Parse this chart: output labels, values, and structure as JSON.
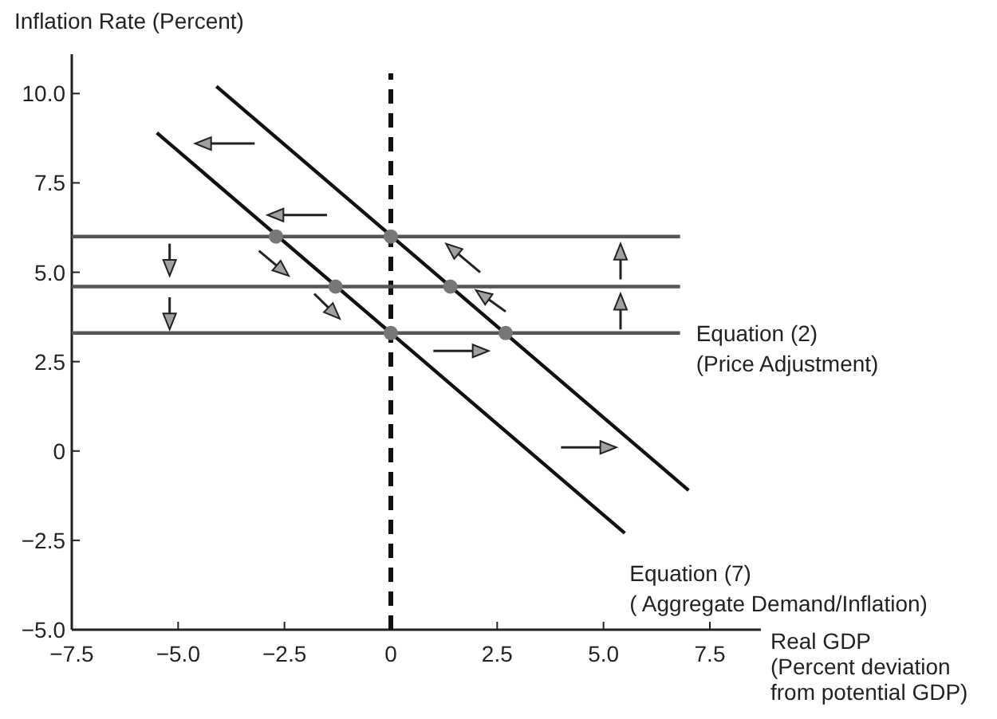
{
  "chart_data": {
    "type": "line",
    "xlabel": "Real GDP\n(Percent deviation\nfrom potential GDP)",
    "ylabel": "Inflation Rate (Percent)",
    "xlim": [
      -7.5,
      8.7
    ],
    "ylim": [
      -5,
      11.1
    ],
    "xticks": [
      {
        "value": -7.5,
        "label": "−7.5"
      },
      {
        "value": -5,
        "label": "−5.0"
      },
      {
        "value": -2.5,
        "label": "−2.5"
      },
      {
        "value": 0,
        "label": "0"
      },
      {
        "value": 2.5,
        "label": "2.5"
      },
      {
        "value": 5,
        "label": "5.0"
      },
      {
        "value": 7.5,
        "label": "7.5"
      }
    ],
    "yticks": [
      {
        "value": -5,
        "label": "−5.0"
      },
      {
        "value": -2.5,
        "label": "−2.5"
      },
      {
        "value": 0,
        "label": "0"
      },
      {
        "value": 2.5,
        "label": "2.5"
      },
      {
        "value": 5,
        "label": "5.0"
      },
      {
        "value": 7.5,
        "label": "7.5"
      },
      {
        "value": 10,
        "label": "10.0"
      }
    ],
    "grid": false,
    "marker": "none",
    "line_style": "solid",
    "series": [
      {
        "color": "#555555",
        "x": [
          -7.5,
          6.8
        ],
        "values": [
          6.0,
          6.0
        ]
      },
      {
        "color": "#555555",
        "x": [
          -7.5,
          6.8
        ],
        "values": [
          4.6,
          4.6
        ]
      },
      {
        "color": "#555555",
        "x": [
          -7.5,
          6.8
        ],
        "values": [
          3.3,
          3.3
        ]
      },
      {
        "color": "#111111",
        "x": [
          -4.1,
          7.0
        ],
        "values": [
          10.2,
          -1.1
        ]
      },
      {
        "color": "#111111",
        "x": [
          -5.5,
          5.5
        ],
        "values": [
          8.9,
          -2.3
        ]
      },
      {
        "type": "scatter",
        "marker": "circle",
        "color": "#777777",
        "x": [
          -2.7,
          0,
          -1.3,
          1.4,
          0,
          2.7
        ],
        "values": [
          6.0,
          6.0,
          4.6,
          4.6,
          3.3,
          3.3
        ]
      }
    ],
    "ref_lines": [
      {
        "axis": "x",
        "value": 0,
        "line_style": "dashed",
        "color": "#111111"
      }
    ],
    "annotations": [
      {
        "text": "Equation (2)\n(Price Adjustment)",
        "x": 6.8,
        "y": 3.3
      },
      {
        "text": "Equation (7)\n( Aggregate Demand/Inflation)",
        "x": 5.5,
        "y": -2.3
      }
    ]
  }
}
